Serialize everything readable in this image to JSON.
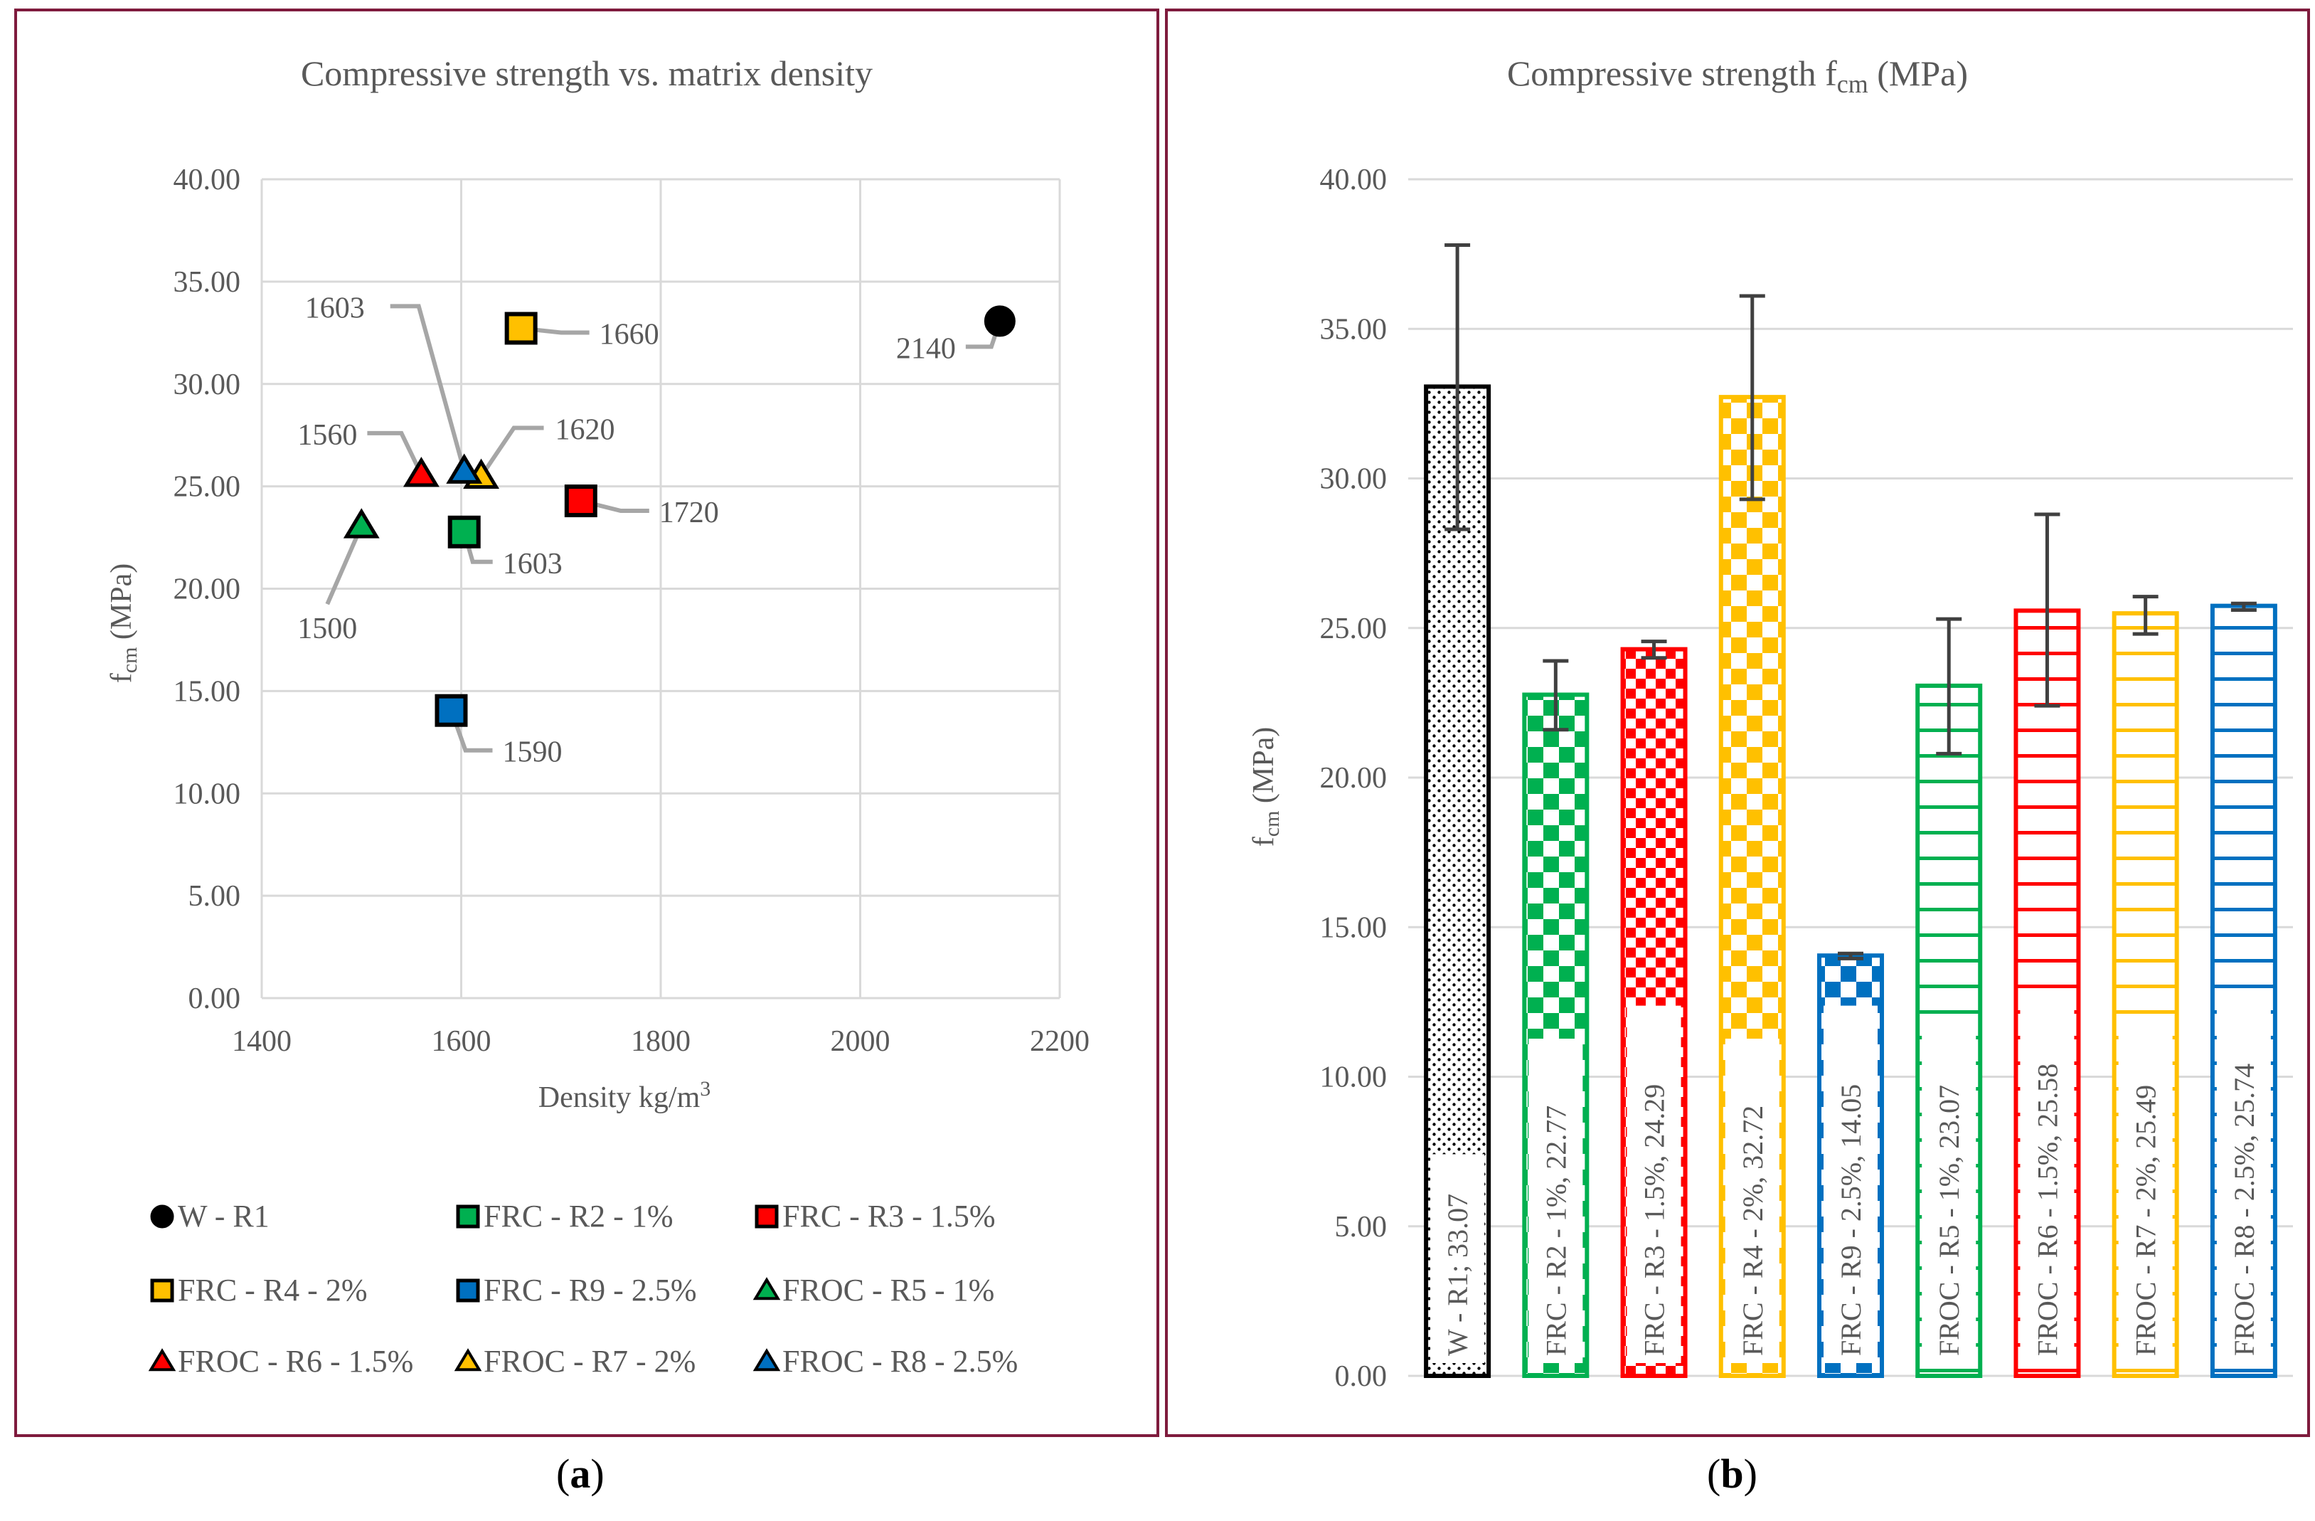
{
  "colors": {
    "border": "#7f1b3d",
    "grid": "#d9d9d9",
    "text": "#595959",
    "leader": "#a6a6a6",
    "black": "#000000",
    "green": "#00b050",
    "red": "#ff0000",
    "yellow": "#ffc000",
    "blue": "#0070c0",
    "errorbar": "#404040"
  },
  "captions": {
    "a": "a",
    "b": "b"
  },
  "chart_data": [
    {
      "id": "a",
      "type": "scatter",
      "title": "Compressive strength vs. matrix density",
      "xlabel_main": "Density kg/m",
      "xlabel_sup": "3",
      "ylabel_main": "f",
      "ylabel_sub": "cm",
      "ylabel_rest": " (MPa)",
      "xlim": [
        1400,
        2200
      ],
      "ylim": [
        0,
        40
      ],
      "xticks": [
        1400,
        1600,
        1800,
        2000,
        2200
      ],
      "xtick_labels": [
        "1400",
        "1600",
        "1800",
        "2000",
        "2200"
      ],
      "yticks": [
        0,
        5,
        10,
        15,
        20,
        25,
        30,
        35,
        40
      ],
      "ytick_labels": [
        "0.00",
        "5.00",
        "10.00",
        "15.00",
        "20.00",
        "25.00",
        "30.00",
        "35.00",
        "40.00"
      ],
      "grid": true,
      "legend_position": "bottom",
      "series": [
        {
          "name": "W - R1",
          "x": 2140,
          "y": 33.07,
          "marker": "circle",
          "color": "#000000",
          "label": "2140"
        },
        {
          "name": "FRC - R2 - 1%",
          "x": 1603,
          "y": 22.77,
          "marker": "square",
          "color": "#00b050",
          "label": "1603"
        },
        {
          "name": "FRC - R3 - 1.5%",
          "x": 1720,
          "y": 24.29,
          "marker": "square",
          "color": "#ff0000",
          "label": "1720"
        },
        {
          "name": "FRC - R4 - 2%",
          "x": 1660,
          "y": 32.72,
          "marker": "square",
          "color": "#ffc000",
          "label": "1660"
        },
        {
          "name": "FRC - R9 - 2.5%",
          "x": 1590,
          "y": 14.05,
          "marker": "square",
          "color": "#0070c0",
          "label": "1590"
        },
        {
          "name": "FROC - R5 - 1%",
          "x": 1500,
          "y": 23.07,
          "marker": "triangle",
          "color": "#00b050",
          "label": "1500"
        },
        {
          "name": "FROC - R6 - 1.5%",
          "x": 1560,
          "y": 25.58,
          "marker": "triangle",
          "color": "#ff0000",
          "label": "1560"
        },
        {
          "name": "FROC - R7 - 2%",
          "x": 1620,
          "y": 25.49,
          "marker": "triangle",
          "color": "#ffc000",
          "label": "1620"
        },
        {
          "name": "FROC - R8 - 2.5%",
          "x": 1603,
          "y": 25.74,
          "marker": "triangle",
          "color": "#0070c0",
          "label": "1603"
        }
      ]
    },
    {
      "id": "b",
      "type": "bar",
      "title_main": "Compressive strength f",
      "title_sub": "cm",
      "title_rest": " (MPa)",
      "ylabel_main": "f",
      "ylabel_sub": "cm",
      "ylabel_rest": " (MPa)",
      "ylim": [
        0,
        40
      ],
      "yticks": [
        0,
        5,
        10,
        15,
        20,
        25,
        30,
        35,
        40
      ],
      "ytick_labels": [
        "0.00",
        "5.00",
        "10.00",
        "15.00",
        "20.00",
        "25.00",
        "30.00",
        "35.00",
        "40.00"
      ],
      "grid": true,
      "categories": [
        "W - R1",
        "FRC - R2 - 1%",
        "FRC - R3 - 1.5%",
        "FRC - R4 - 2%",
        "FRC - R9 - 2.5%",
        "FROC - R5 - 1%",
        "FROC - R6 - 1.5%",
        "FROC - R7 - 2%",
        "FROC - R8 - 2.5%"
      ],
      "values": [
        33.07,
        22.77,
        24.29,
        32.72,
        14.05,
        23.07,
        25.58,
        25.49,
        25.74
      ],
      "error_low": [
        28.3,
        21.6,
        24.0,
        29.3,
        13.95,
        20.8,
        22.4,
        24.8,
        25.6
      ],
      "error_high": [
        37.8,
        23.9,
        24.55,
        36.1,
        14.12,
        25.3,
        28.8,
        26.05,
        25.82
      ],
      "data_labels": [
        "W - R1; 33.07",
        "FRC - R2 - 1%, 22.77",
        "FRC - R3 - 1.5%, 24.29",
        "FRC - R4 - 2%, 32.72",
        "FRC - R9 - 2.5%, 14.05",
        "FROC - R5 - 1%, 23.07",
        "FROC - R6 - 1.5%, 25.58",
        "FROC - R7 - 2%, 25.49",
        "FROC - R8 - 2.5%, 25.74"
      ],
      "colors": [
        "#000000",
        "#00b050",
        "#ff0000",
        "#ffc000",
        "#0070c0",
        "#00b050",
        "#ff0000",
        "#ffc000",
        "#0070c0"
      ],
      "patterns": [
        "dots",
        "checker-large",
        "checker-small",
        "checker-large",
        "checker-large",
        "hstripes",
        "hstripes",
        "hstripes",
        "hstripes"
      ]
    }
  ]
}
